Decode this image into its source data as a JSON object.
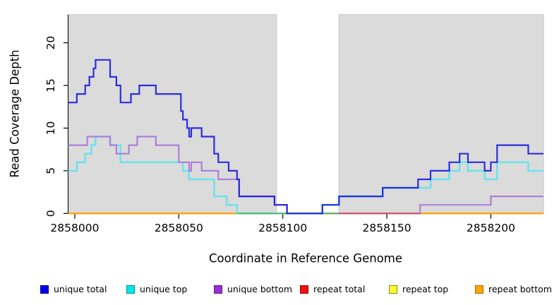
{
  "figure": {
    "xlabel": "Coordinate in Reference Genome",
    "ylabel": "Read Coverage Depth"
  },
  "chart_data": {
    "type": "step-line",
    "title": "",
    "xlabel": "Coordinate in Reference Genome",
    "ylabel": "Read Coverage Depth",
    "xlim": [
      2857996.8,
      2858225.3
    ],
    "ylim": [
      0,
      23.3
    ],
    "xticks": [
      2858000,
      2858050,
      2858100,
      2858150,
      2858200
    ],
    "yticks": [
      0,
      5,
      10,
      15,
      20
    ],
    "grid": false,
    "panel_bg": "#dbdbdb",
    "panel_border": "#c5c5c5",
    "uncovered_gap_region": [
      2858097,
      2858127
    ],
    "legend_position": "bottom",
    "series": [
      {
        "name": "repeat total",
        "color": "#ee2222",
        "width": 1.8,
        "opacity": 1,
        "points": [
          [
            2857996.8,
            0
          ]
        ]
      },
      {
        "name": "repeat top",
        "color": "#ffee00",
        "width": 1.8,
        "opacity": 1,
        "points": [
          [
            2857996.8,
            0
          ]
        ]
      },
      {
        "name": "repeat bottom",
        "color": "#ff9f00",
        "width": 1.8,
        "opacity": 1,
        "points": [
          [
            2857996.8,
            0
          ]
        ]
      },
      {
        "name": "unique top",
        "color": "#6fe3ea",
        "width": 2.6,
        "opacity": 1,
        "points": [
          [
            2857996.8,
            5
          ],
          [
            2858001,
            6
          ],
          [
            2858005,
            7
          ],
          [
            2858008,
            8
          ],
          [
            2858010,
            9
          ],
          [
            2858017,
            8
          ],
          [
            2858022,
            6
          ],
          [
            2858052,
            5
          ],
          [
            2858055,
            4
          ],
          [
            2858067,
            2
          ],
          [
            2858073,
            1
          ],
          [
            2858078,
            0
          ],
          [
            2858119,
            1
          ],
          [
            2858127,
            2
          ],
          [
            2858148,
            3
          ],
          [
            2858171,
            4
          ],
          [
            2858180,
            5
          ],
          [
            2858185,
            6
          ],
          [
            2858189,
            5
          ],
          [
            2858197,
            4
          ],
          [
            2858203,
            6
          ],
          [
            2858218,
            5
          ]
        ]
      },
      {
        "name": "unique bottom",
        "color": "#ad7fd9",
        "width": 2.2,
        "opacity": 1,
        "points": [
          [
            2857996.8,
            8
          ],
          [
            2858006,
            9
          ],
          [
            2858017,
            8
          ],
          [
            2858020,
            7
          ],
          [
            2858026,
            8
          ],
          [
            2858030,
            9
          ],
          [
            2858039,
            8
          ],
          [
            2858050,
            6
          ],
          [
            2858055,
            5
          ],
          [
            2858056,
            6
          ],
          [
            2858061,
            5
          ],
          [
            2858069,
            4
          ],
          [
            2858079,
            2
          ],
          [
            2858096,
            1
          ],
          [
            2858102,
            0
          ],
          [
            2858166,
            1
          ],
          [
            2858200,
            2
          ]
        ]
      },
      {
        "name": "unique total",
        "color": "#1b1bdd",
        "width": 2.2,
        "opacity": 0.9,
        "points": [
          [
            2857996.8,
            13
          ],
          [
            2858001,
            14
          ],
          [
            2858005,
            15
          ],
          [
            2858007,
            16
          ],
          [
            2858009,
            17
          ],
          [
            2858010,
            18
          ],
          [
            2858017,
            16
          ],
          [
            2858020,
            15
          ],
          [
            2858022,
            13
          ],
          [
            2858027,
            14
          ],
          [
            2858031,
            15
          ],
          [
            2858039,
            14
          ],
          [
            2858051,
            12
          ],
          [
            2858052,
            11
          ],
          [
            2858054,
            10
          ],
          [
            2858055,
            9
          ],
          [
            2858056,
            10
          ],
          [
            2858061,
            9
          ],
          [
            2858067,
            7
          ],
          [
            2858069,
            6
          ],
          [
            2858074,
            5
          ],
          [
            2858078,
            4
          ],
          [
            2858079,
            2
          ],
          [
            2858096,
            1
          ],
          [
            2858102,
            0
          ],
          [
            2858119,
            1
          ],
          [
            2858127,
            2
          ],
          [
            2858148,
            3
          ],
          [
            2858165,
            4
          ],
          [
            2858171,
            5
          ],
          [
            2858180,
            6
          ],
          [
            2858185,
            7
          ],
          [
            2858189,
            6
          ],
          [
            2858197,
            5
          ],
          [
            2858200,
            6
          ],
          [
            2858203,
            8
          ],
          [
            2858218,
            7
          ]
        ]
      }
    ],
    "baseline_overlap_segments": [
      {
        "from": 2858078,
        "to": 2858127,
        "color": "#58b662",
        "width": 1.8
      },
      {
        "from": 2858127,
        "to": 2858166,
        "color": "#c8506e",
        "width": 1.8
      }
    ],
    "draw_order": [
      "repeat total",
      "repeat top",
      "repeat bottom",
      "unique top",
      "unique bottom",
      "__overlaps__",
      "unique total"
    ],
    "legend": [
      {
        "label": "unique total",
        "fill": "#0000e6",
        "border": "#00008b"
      },
      {
        "label": "unique top",
        "fill": "#00e6ee",
        "border": "#0b8f96"
      },
      {
        "label": "unique bottom",
        "fill": "#992fd0",
        "border": "#5c1d86"
      },
      {
        "label": "repeat total",
        "fill": "#ee1111",
        "border": "#990000"
      },
      {
        "label": "repeat top",
        "fill": "#ffff33",
        "border": "#8a8a00"
      },
      {
        "label": "repeat bottom",
        "fill": "#ffa500",
        "border": "#aa6c00"
      }
    ]
  }
}
